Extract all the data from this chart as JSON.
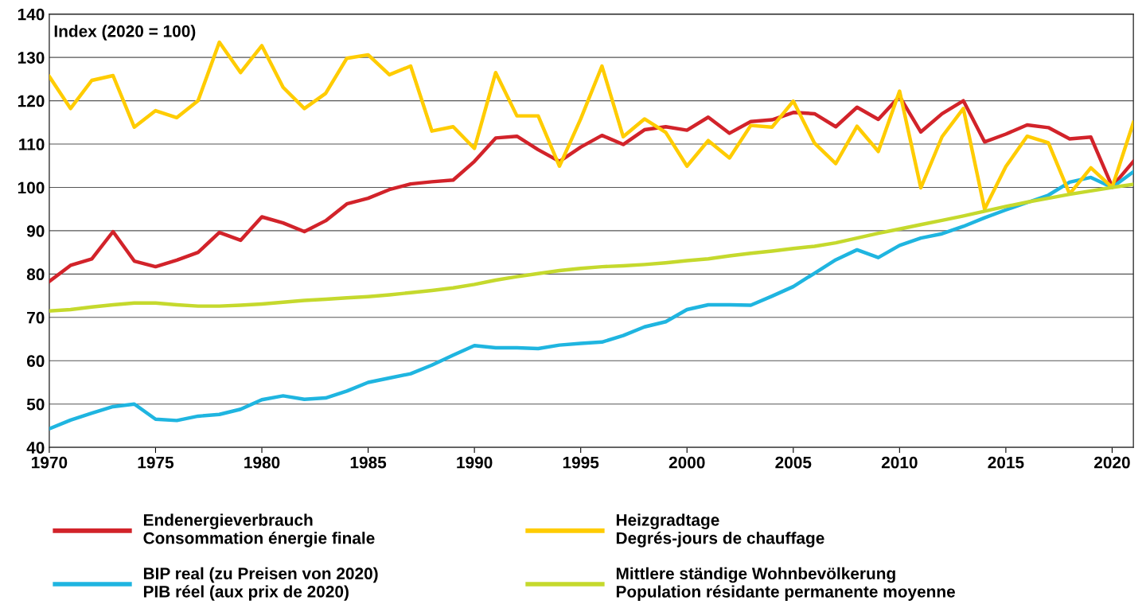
{
  "chart_data": {
    "type": "line",
    "ylabel": "Index (2020 = 100)",
    "x": [
      1970,
      1971,
      1972,
      1973,
      1974,
      1975,
      1976,
      1977,
      1978,
      1979,
      1980,
      1981,
      1982,
      1983,
      1984,
      1985,
      1986,
      1987,
      1988,
      1989,
      1990,
      1991,
      1992,
      1993,
      1994,
      1995,
      1996,
      1997,
      1998,
      1999,
      2000,
      2001,
      2002,
      2003,
      2004,
      2005,
      2006,
      2007,
      2008,
      2009,
      2010,
      2011,
      2012,
      2013,
      2014,
      2015,
      2016,
      2017,
      2018,
      2019,
      2020,
      2021
    ],
    "series": [
      {
        "name": "Endenergieverbrauch\nConsommation énergie finale",
        "color": "#d2232a",
        "values": [
          78.3,
          82,
          83.5,
          89.8,
          83,
          81.7,
          83.2,
          85,
          89.6,
          87.8,
          93.2,
          91.8,
          89.8,
          92.3,
          96.2,
          97.5,
          99.5,
          100.8,
          101.3,
          101.7,
          106,
          111.4,
          111.8,
          108.7,
          106,
          109.3,
          112,
          109.9,
          113.3,
          114,
          113.2,
          116.2,
          112.5,
          115.2,
          115.6,
          117.3,
          117,
          114,
          118.5,
          115.7,
          121,
          112.8,
          117,
          120,
          110.5,
          112.3,
          114.4,
          113.8,
          111.2,
          111.6,
          100.2,
          106
        ]
      },
      {
        "name": "BIP real (zu Preisen von 2020)\nPIB réel (aux prix de 2020)",
        "color": "#1fb5e0",
        "values": [
          44.3,
          46.3,
          47.9,
          49.4,
          50,
          46.5,
          46.2,
          47.2,
          47.6,
          48.8,
          51,
          51.9,
          51.1,
          51.4,
          53,
          55,
          56,
          57,
          59,
          61.3,
          63.5,
          63,
          63,
          62.8,
          63.6,
          64,
          64.3,
          65.8,
          67.8,
          69,
          71.8,
          72.9,
          72.9,
          72.8,
          74.9,
          77.1,
          80.2,
          83.3,
          85.6,
          83.8,
          86.6,
          88.3,
          89.3,
          91,
          93,
          94.8,
          96.5,
          98.2,
          101.2,
          102.3,
          100,
          103.6
        ]
      },
      {
        "name": "Heizgradtage\nDegrés-jours de chauffage",
        "color": "#ffcc00",
        "values": [
          125.6,
          118.2,
          124.7,
          125.8,
          113.9,
          117.7,
          116.1,
          120,
          133.5,
          126.5,
          132.7,
          123.1,
          118.2,
          121.7,
          129.8,
          130.6,
          126,
          128,
          113,
          114,
          109,
          126.5,
          116.5,
          116.5,
          104.9,
          115.8,
          128,
          111.7,
          115.8,
          112.7,
          104.9,
          110.8,
          106.8,
          114.3,
          113.9,
          119.9,
          110.2,
          105.5,
          114.1,
          108.3,
          122.2,
          99.9,
          111.7,
          118.2,
          95,
          104.8,
          111.8,
          110.3,
          98.5,
          104.5,
          100,
          115
        ]
      },
      {
        "name": "Mittlere ständige Wohnbevölkerung\nPopulation résidante permanente moyenne",
        "color": "#c5d92d",
        "values": [
          71.5,
          71.8,
          72.4,
          72.9,
          73.3,
          73.3,
          72.9,
          72.6,
          72.6,
          72.8,
          73.1,
          73.5,
          73.9,
          74.2,
          74.5,
          74.8,
          75.2,
          75.7,
          76.2,
          76.8,
          77.6,
          78.6,
          79.4,
          80.1,
          80.8,
          81.3,
          81.7,
          81.9,
          82.2,
          82.6,
          83.1,
          83.5,
          84.2,
          84.8,
          85.3,
          85.9,
          86.4,
          87.2,
          88.3,
          89.4,
          90.4,
          91.4,
          92.4,
          93.4,
          94.5,
          95.6,
          96.6,
          97.5,
          98.4,
          99.2,
          100,
          100.7
        ]
      }
    ],
    "xlim": [
      1970,
      2021
    ],
    "xticks": [
      1970,
      1975,
      1980,
      1985,
      1990,
      1995,
      2000,
      2005,
      2010,
      2015,
      2020
    ],
    "ylim": [
      40,
      140
    ],
    "yticks": [
      40,
      50,
      60,
      70,
      80,
      90,
      100,
      110,
      120,
      130,
      140
    ],
    "grid": "y",
    "legend": "bottom",
    "marker": "none",
    "line_style": "solid"
  }
}
